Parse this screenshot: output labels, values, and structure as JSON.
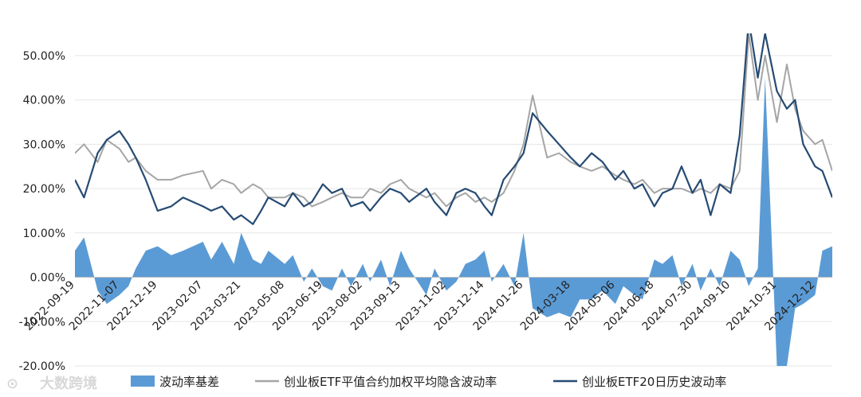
{
  "chart_data": {
    "type": "line",
    "title": "",
    "xlabel": "",
    "ylabel": "",
    "ylim": [
      -20,
      55
    ],
    "y_ticks": [
      "-20.00%",
      "-10.00%",
      "0.00%",
      "10.00%",
      "20.00%",
      "30.00%",
      "40.00%",
      "50.00%"
    ],
    "y_tick_values": [
      -20,
      -10,
      0,
      10,
      20,
      30,
      40,
      50
    ],
    "x_ticks": [
      "2022-09-19",
      "2022-11-07",
      "2022-12-19",
      "2023-02-07",
      "2023-03-21",
      "2023-05-08",
      "2023-06-19",
      "2023-08-02",
      "2023-09-13",
      "2023-11-02",
      "2023-12-14",
      "2024-01-26",
      "2024-03-18",
      "2024-05-06",
      "2024-06-18",
      "2024-07-30",
      "2024-09-10",
      "2024-10-31",
      "2024-12-12"
    ],
    "grid": "horizontal",
    "legend_position": "bottom",
    "colors": {
      "basis": "#5b9bd5",
      "implied": "#a5a5a5",
      "historical": "#264b73"
    },
    "series": [
      {
        "name": "波动率基差",
        "kind": "area",
        "key": "basis",
        "x": [
          "2022-09-19",
          "2022-09-29",
          "2022-10-14",
          "2022-10-24",
          "2022-11-07",
          "2022-11-17",
          "2022-11-25",
          "2022-12-06",
          "2022-12-19",
          "2023-01-03",
          "2023-01-16",
          "2023-02-07",
          "2023-02-16",
          "2023-02-28",
          "2023-03-13",
          "2023-03-21",
          "2023-04-03",
          "2023-04-12",
          "2023-04-20",
          "2023-05-08",
          "2023-05-17",
          "2023-05-29",
          "2023-06-07",
          "2023-06-19",
          "2023-06-29",
          "2023-07-10",
          "2023-07-20",
          "2023-08-02",
          "2023-08-10",
          "2023-08-22",
          "2023-09-01",
          "2023-09-13",
          "2023-09-22",
          "2023-10-11",
          "2023-10-20",
          "2023-11-02",
          "2023-11-13",
          "2023-11-23",
          "2023-12-04",
          "2023-12-14",
          "2023-12-22",
          "2024-01-04",
          "2024-01-16",
          "2024-01-26",
          "2024-02-05",
          "2024-02-21",
          "2024-03-05",
          "2024-03-18",
          "2024-03-28",
          "2024-04-10",
          "2024-04-22",
          "2024-05-06",
          "2024-05-15",
          "2024-05-27",
          "2024-06-05",
          "2024-06-18",
          "2024-06-27",
          "2024-07-08",
          "2024-07-18",
          "2024-07-30",
          "2024-08-08",
          "2024-08-19",
          "2024-08-29",
          "2024-09-10",
          "2024-09-20",
          "2024-09-30",
          "2024-10-10",
          "2024-10-18",
          "2024-10-31",
          "2024-11-11",
          "2024-11-20",
          "2024-11-29",
          "2024-12-12",
          "2024-12-20",
          "2024-12-31"
        ],
        "y": [
          6,
          9,
          -3,
          -6,
          -4,
          -2,
          2,
          6,
          7,
          5,
          6,
          8,
          4,
          8,
          3,
          10,
          4,
          3,
          6,
          3,
          5,
          -1,
          2,
          -2,
          -3,
          2,
          -2,
          3,
          -1,
          4,
          -2,
          6,
          2,
          -4,
          2,
          -3,
          -1,
          3,
          4,
          6,
          -1,
          3,
          -2,
          10,
          -7,
          -9,
          -8,
          -9,
          -5,
          -5,
          -3,
          -6,
          -2,
          -4,
          -5,
          4,
          3,
          5,
          -2,
          3,
          -3,
          2,
          -2,
          6,
          4,
          -2,
          2,
          45,
          -20,
          -20,
          -7,
          -6,
          -4,
          6,
          7
        ]
      },
      {
        "name": "创业板ETF平值合约加权平均隐含波动率",
        "kind": "line",
        "key": "implied",
        "x": [
          "2022-09-19",
          "2022-09-29",
          "2022-10-14",
          "2022-10-24",
          "2022-11-07",
          "2022-11-17",
          "2022-11-25",
          "2022-12-06",
          "2022-12-19",
          "2023-01-03",
          "2023-01-16",
          "2023-02-07",
          "2023-02-16",
          "2023-02-28",
          "2023-03-13",
          "2023-03-21",
          "2023-04-03",
          "2023-04-12",
          "2023-04-20",
          "2023-05-08",
          "2023-05-17",
          "2023-05-29",
          "2023-06-07",
          "2023-06-19",
          "2023-06-29",
          "2023-07-10",
          "2023-07-20",
          "2023-08-02",
          "2023-08-10",
          "2023-08-22",
          "2023-09-01",
          "2023-09-13",
          "2023-09-22",
          "2023-10-11",
          "2023-10-20",
          "2023-11-02",
          "2023-11-13",
          "2023-11-23",
          "2023-12-04",
          "2023-12-14",
          "2023-12-22",
          "2024-01-04",
          "2024-01-16",
          "2024-01-26",
          "2024-02-05",
          "2024-02-21",
          "2024-03-05",
          "2024-03-18",
          "2024-03-28",
          "2024-04-10",
          "2024-04-22",
          "2024-05-06",
          "2024-05-15",
          "2024-05-27",
          "2024-06-05",
          "2024-06-18",
          "2024-06-27",
          "2024-07-08",
          "2024-07-18",
          "2024-07-30",
          "2024-08-08",
          "2024-08-19",
          "2024-08-29",
          "2024-09-10",
          "2024-09-20",
          "2024-09-30",
          "2024-10-10",
          "2024-10-18",
          "2024-10-31",
          "2024-11-11",
          "2024-11-20",
          "2024-11-29",
          "2024-12-12",
          "2024-12-20",
          "2024-12-31"
        ],
        "y": [
          28,
          30,
          26,
          31,
          29,
          26,
          27,
          24,
          22,
          22,
          23,
          24,
          20,
          22,
          21,
          19,
          21,
          20,
          18,
          18,
          19,
          18,
          16,
          17,
          18,
          19,
          18,
          18,
          20,
          19,
          21,
          22,
          20,
          18,
          19,
          16,
          18,
          19,
          17,
          18,
          17,
          19,
          24,
          30,
          41,
          27,
          28,
          26,
          25,
          24,
          25,
          23,
          22,
          21,
          22,
          19,
          20,
          20,
          20,
          19,
          20,
          19,
          21,
          20,
          24,
          55,
          40,
          50,
          35,
          48,
          38,
          33,
          30,
          31,
          24
        ]
      },
      {
        "name": "创业板ETF20日历史波动率",
        "kind": "line",
        "key": "historical",
        "x": [
          "2022-09-19",
          "2022-09-29",
          "2022-10-14",
          "2022-10-24",
          "2022-11-07",
          "2022-11-17",
          "2022-11-25",
          "2022-12-06",
          "2022-12-19",
          "2023-01-03",
          "2023-01-16",
          "2023-02-07",
          "2023-02-16",
          "2023-02-28",
          "2023-03-13",
          "2023-03-21",
          "2023-04-03",
          "2023-04-12",
          "2023-04-20",
          "2023-05-08",
          "2023-05-17",
          "2023-05-29",
          "2023-06-07",
          "2023-06-19",
          "2023-06-29",
          "2023-07-10",
          "2023-07-20",
          "2023-08-02",
          "2023-08-10",
          "2023-08-22",
          "2023-09-01",
          "2023-09-13",
          "2023-09-22",
          "2023-10-11",
          "2023-10-20",
          "2023-11-02",
          "2023-11-13",
          "2023-11-23",
          "2023-12-04",
          "2023-12-14",
          "2023-12-22",
          "2024-01-04",
          "2024-01-16",
          "2024-01-26",
          "2024-02-05",
          "2024-02-21",
          "2024-03-05",
          "2024-03-18",
          "2024-03-28",
          "2024-04-10",
          "2024-04-22",
          "2024-05-06",
          "2024-05-15",
          "2024-05-27",
          "2024-06-05",
          "2024-06-18",
          "2024-06-27",
          "2024-07-08",
          "2024-07-18",
          "2024-07-30",
          "2024-08-08",
          "2024-08-19",
          "2024-08-29",
          "2024-09-10",
          "2024-09-20",
          "2024-09-30",
          "2024-10-10",
          "2024-10-18",
          "2024-10-31",
          "2024-11-11",
          "2024-11-20",
          "2024-11-29",
          "2024-12-12",
          "2024-12-20",
          "2024-12-31"
        ],
        "y": [
          22,
          18,
          28,
          31,
          33,
          30,
          27,
          22,
          15,
          16,
          18,
          16,
          15,
          16,
          13,
          14,
          12,
          15,
          18,
          16,
          19,
          16,
          17,
          21,
          19,
          20,
          16,
          17,
          15,
          18,
          20,
          19,
          17,
          20,
          17,
          14,
          19,
          20,
          19,
          16,
          14,
          22,
          25,
          28,
          37,
          33,
          30,
          27,
          25,
          28,
          26,
          22,
          24,
          20,
          21,
          16,
          19,
          20,
          25,
          19,
          22,
          14,
          21,
          19,
          32,
          58,
          45,
          55,
          42,
          38,
          40,
          30,
          25,
          24,
          18
        ]
      }
    ]
  },
  "watermark": {
    "glyph": "⊙",
    "text": "大数跨境"
  }
}
